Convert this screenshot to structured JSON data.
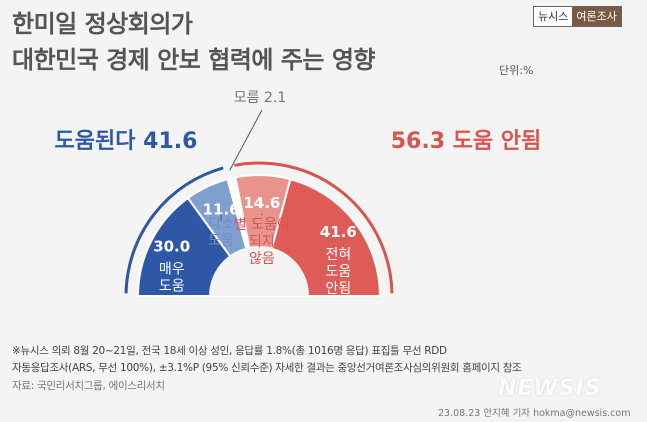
{
  "header": {
    "title_line1": "한미일 정상회의가",
    "title_line2": "대한민국 경제 안보 협력에 주는 영향",
    "unit": "단위:%",
    "brand_left": "뉴시스",
    "brand_right": "여론조사"
  },
  "chart_data": {
    "type": "pie",
    "shape": "semicircle",
    "segments": [
      {
        "label": "매우 도움",
        "lines": [
          "매우",
          "도움"
        ],
        "value": 30.0,
        "display": "30.0",
        "group": "positive",
        "color": "#2e58a6",
        "label_color": "#ffffff"
      },
      {
        "label": "다소 도움",
        "lines": [
          "다소",
          "도움"
        ],
        "value": 11.6,
        "display": "11.6",
        "group": "positive",
        "color": "#7f9fd0",
        "label_color": "#6f8ec6"
      },
      {
        "label": "모름",
        "lines": [],
        "value": 2.1,
        "display": "2.1",
        "group": "unknown",
        "color": "#ffffff",
        "label_color": "#777777"
      },
      {
        "label": "별 도움이 되지 않음",
        "lines": [
          "별 도움이",
          "되지",
          "않음"
        ],
        "value": 14.6,
        "display": "14.6",
        "group": "negative",
        "color": "#e8948c",
        "label_color": "#d9534f"
      },
      {
        "label": "전혀 도움 안됨",
        "lines": [
          "전혀",
          "도움",
          "안됨"
        ],
        "value": 41.6,
        "display": "41.6",
        "group": "negative",
        "color": "#df5b57",
        "label_color": "#ffffff"
      }
    ],
    "summary_left": {
      "label": "도움된다",
      "value": "41.6",
      "color": "#2e58a6"
    },
    "summary_right": {
      "label": "도움 안됨",
      "value": "56.3",
      "color": "#d9534f"
    },
    "unknown_label": "모름",
    "unknown_value": "2.1"
  },
  "notes": {
    "line1": "※뉴시스 의뢰 8월 20~21일, 전국 18세 이상 성인, 응답률 1.8%(총 1016명 응답) 표집틀 무선 RDD",
    "line2": "자동응답조사(ARS, 무선 100%), ±3.1%P (95% 신뢰수준) 자세한 결과는 중앙선거여론조사심의위원회 홈페이지 참조",
    "line3": "자료: 국민리서치그룹, 에이스리서치",
    "credit": "23.08.23 안지혜 기자 hokma@newsis.com",
    "watermark": "NEWSIS"
  }
}
